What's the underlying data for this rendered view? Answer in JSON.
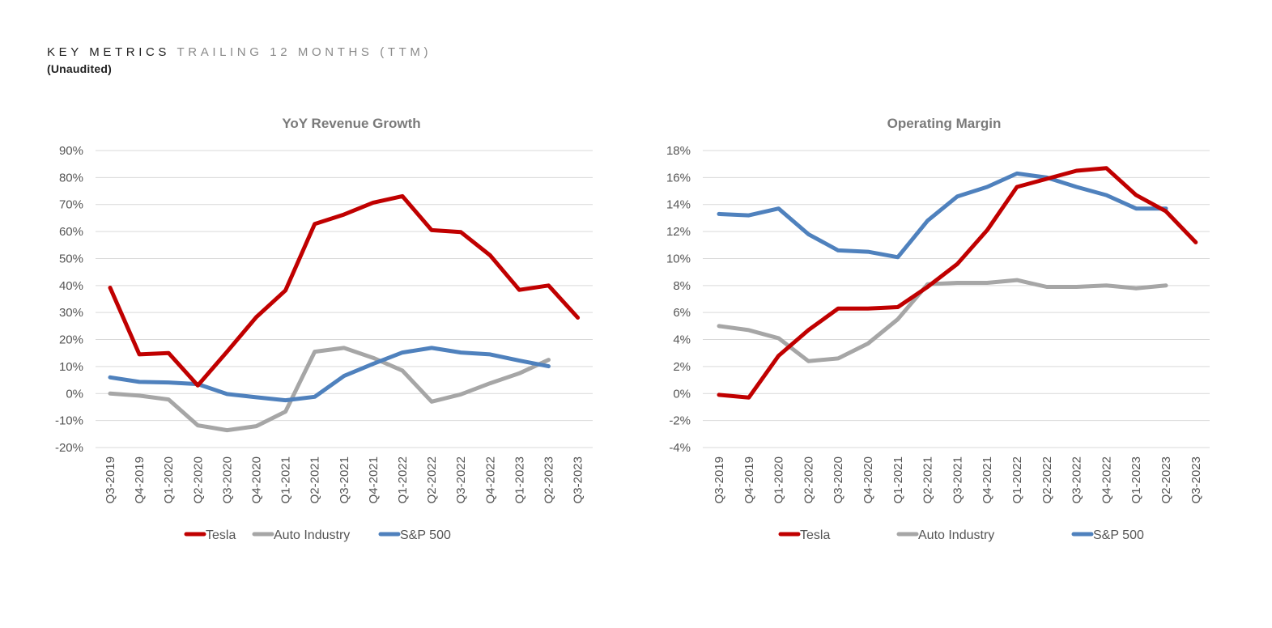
{
  "header": {
    "title": "KEY METRICS",
    "subtitle": "TRAILING 12 MONTHS (TTM)",
    "note": "(Unaudited)"
  },
  "colors": {
    "Tesla": "#c00000",
    "Auto Industry": "#a6a6a6",
    "S&P 500": "#4f81bd"
  },
  "chart_data": [
    {
      "type": "line",
      "title": "YoY Revenue Growth",
      "xlabel": "",
      "ylabel": "",
      "categories": [
        "Q3-2019",
        "Q4-2019",
        "Q1-2020",
        "Q2-2020",
        "Q3-2020",
        "Q4-2020",
        "Q1-2021",
        "Q2-2021",
        "Q3-2021",
        "Q4-2021",
        "Q1-2022",
        "Q2-2022",
        "Q3-2022",
        "Q4-2022",
        "Q1-2023",
        "Q2-2023",
        "Q3-2023"
      ],
      "ylim": [
        -20,
        90
      ],
      "yticks": [
        -20,
        -10,
        0,
        10,
        20,
        30,
        40,
        50,
        60,
        70,
        80,
        90
      ],
      "ytick_labels": [
        "-20%",
        "-10%",
        "0%",
        "10%",
        "20%",
        "30%",
        "40%",
        "50%",
        "60%",
        "70%",
        "80%",
        "90%"
      ],
      "grid": true,
      "legend": "bottom",
      "series": [
        {
          "name": "Tesla",
          "values": [
            39.2,
            14.5,
            15,
            3,
            15.5,
            28.3,
            38.2,
            62.8,
            66.3,
            70.7,
            73.1,
            60.5,
            59.8,
            51.2,
            38.4,
            40,
            28.1
          ]
        },
        {
          "name": "Auto Industry",
          "values": [
            0,
            -0.8,
            -2.2,
            -11.8,
            -13.6,
            -12.1,
            -6.7,
            15.5,
            16.9,
            13.2,
            8.5,
            -3,
            -0.3,
            3.8,
            7.5,
            12.5,
            null
          ]
        },
        {
          "name": "S&P 500",
          "values": [
            6,
            4.3,
            4.1,
            3.5,
            -0.2,
            -1.4,
            -2.5,
            -1.2,
            6.5,
            11,
            15.2,
            16.9,
            15.2,
            14.5,
            12.2,
            10.1,
            null
          ]
        }
      ]
    },
    {
      "type": "line",
      "title": "Operating Margin",
      "xlabel": "",
      "ylabel": "",
      "categories": [
        "Q3-2019",
        "Q4-2019",
        "Q1-2020",
        "Q2-2020",
        "Q3-2020",
        "Q4-2020",
        "Q1-2021",
        "Q2-2021",
        "Q3-2021",
        "Q4-2021",
        "Q1-2022",
        "Q2-2022",
        "Q3-2022",
        "Q4-2022",
        "Q1-2023",
        "Q2-2023",
        "Q3-2023"
      ],
      "ylim": [
        -4,
        18
      ],
      "yticks": [
        -4,
        -2,
        0,
        2,
        4,
        6,
        8,
        10,
        12,
        14,
        16,
        18
      ],
      "ytick_labels": [
        "-4%",
        "-2%",
        "0%",
        "2%",
        "4%",
        "6%",
        "8%",
        "10%",
        "12%",
        "14%",
        "16%",
        "18%"
      ],
      "grid": true,
      "legend": "bottom",
      "series": [
        {
          "name": "Tesla",
          "values": [
            -0.1,
            -0.3,
            2.8,
            4.7,
            6.3,
            6.3,
            6.4,
            7.9,
            9.6,
            12.1,
            15.3,
            15.9,
            16.5,
            16.7,
            14.7,
            13.5,
            11.2
          ]
        },
        {
          "name": "Auto Industry",
          "values": [
            5,
            4.7,
            4.1,
            2.4,
            2.6,
            3.7,
            5.5,
            8.1,
            8.2,
            8.2,
            8.4,
            7.9,
            7.9,
            8,
            7.8,
            8,
            null
          ]
        },
        {
          "name": "S&P 500",
          "values": [
            13.3,
            13.2,
            13.7,
            11.8,
            10.6,
            10.5,
            10.1,
            12.8,
            14.6,
            15.3,
            16.3,
            16,
            15.3,
            14.7,
            13.7,
            13.7,
            null
          ]
        }
      ]
    }
  ]
}
